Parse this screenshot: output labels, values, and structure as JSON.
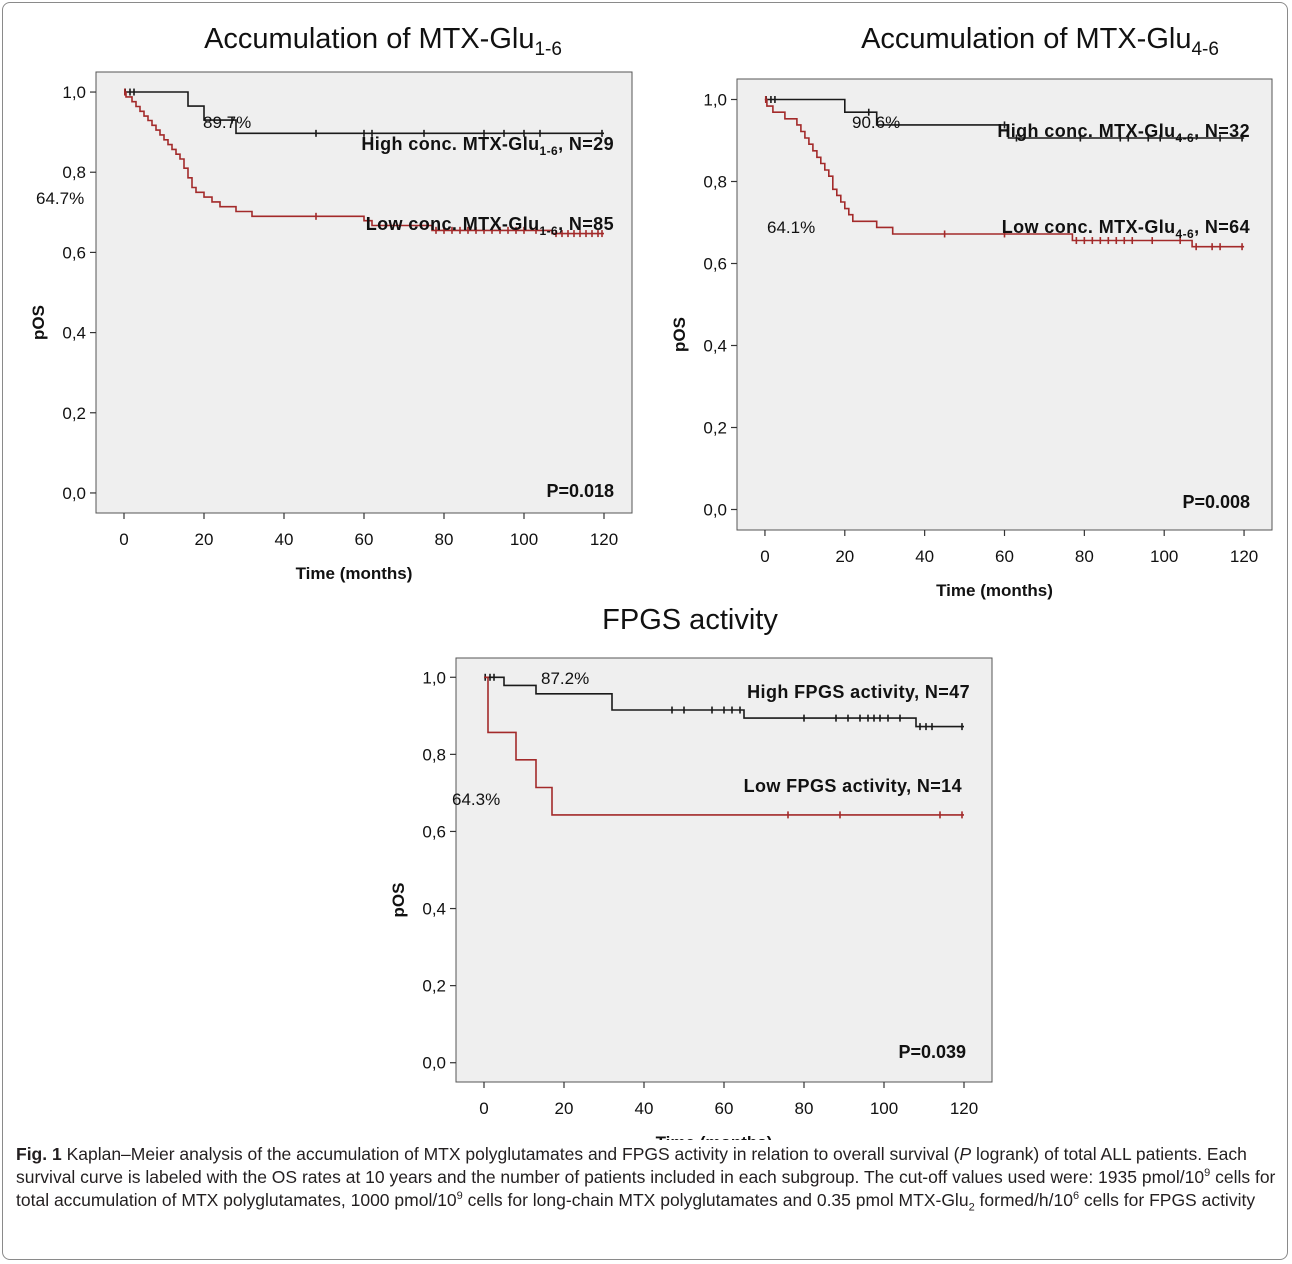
{
  "figure": {
    "caption_label": "Fig. 1",
    "caption_parts": [
      {
        "t": " Kaplan–Meier analysis of the accumulation of MTX polyglutamates and FPGS activity in relation to overall survival ("
      },
      {
        "t": "P",
        "i": true
      },
      {
        "t": " logrank) of total ALL patients. Each survival curve is labeled with the OS rates at 10 years and the number of patients included in each subgroup. The cut-off values used were: 1935 pmol/10"
      },
      {
        "t": "9",
        "sup": true
      },
      {
        "t": " cells for total accumulation of MTX polyglutamates, 1000 pmol/10"
      },
      {
        "t": "9",
        "sup": true
      },
      {
        "t": " cells for long-chain MTX polyglutamates and 0.35 pmol MTX-Glu"
      },
      {
        "t": "2",
        "sub": true
      },
      {
        "t": " formed/h/10"
      },
      {
        "t": "6",
        "sup": true
      },
      {
        "t": " cells for FPGS activity"
      }
    ]
  },
  "chart_data": [
    {
      "type": "line",
      "title": "Accumulation of MTX-Glu",
      "title_sub": "1-6",
      "xlabel": "Time (months)",
      "ylabel": "pOS",
      "xticks": [
        0,
        20,
        40,
        60,
        80,
        100,
        120
      ],
      "yticks": [
        "0,0",
        "0,2",
        "0,4",
        "0,6",
        "0,8",
        "1,0"
      ],
      "xlim": [
        -7,
        127
      ],
      "ylim": [
        -0.05,
        1.05
      ],
      "pvalue": "P=0.018",
      "series": [
        {
          "name": "High conc. MTX-Glu",
          "name_sub": "1-6",
          "name_suffix": ", N=29",
          "color": "#1a1a1a",
          "rate_label": "89.7%",
          "steps": [
            [
              0,
              1.0
            ],
            [
              16,
              0.965
            ],
            [
              20,
              0.93
            ],
            [
              28,
              0.897
            ],
            [
              120,
              0.897
            ]
          ],
          "censor": [
            0.3,
            1.5,
            2.5,
            27,
            48,
            60,
            62,
            75,
            90,
            95,
            100,
            104,
            119.5
          ]
        },
        {
          "name": "Low conc. MTX-Glu",
          "name_sub": "1-6",
          "name_suffix": ", N=85",
          "color": "#a32a2a",
          "rate_label": "64.7%",
          "steps": [
            [
              0,
              1.0
            ],
            [
              0.5,
              0.988
            ],
            [
              2,
              0.976
            ],
            [
              3,
              0.964
            ],
            [
              4,
              0.952
            ],
            [
              5,
              0.94
            ],
            [
              6,
              0.929
            ],
            [
              7,
              0.917
            ],
            [
              8,
              0.905
            ],
            [
              9,
              0.893
            ],
            [
              10,
              0.881
            ],
            [
              11,
              0.869
            ],
            [
              12,
              0.857
            ],
            [
              13,
              0.845
            ],
            [
              14,
              0.833
            ],
            [
              15,
              0.81
            ],
            [
              16,
              0.786
            ],
            [
              17,
              0.762
            ],
            [
              18,
              0.75
            ],
            [
              20,
              0.738
            ],
            [
              22,
              0.726
            ],
            [
              24,
              0.714
            ],
            [
              28,
              0.702
            ],
            [
              32,
              0.69
            ],
            [
              60,
              0.679
            ],
            [
              62,
              0.667
            ],
            [
              77,
              0.655
            ],
            [
              78,
              0.655
            ],
            [
              107,
              0.647
            ],
            [
              120,
              0.647
            ]
          ],
          "censor": [
            0.2,
            48,
            61,
            78,
            80,
            82,
            84,
            86,
            88,
            90,
            92,
            94,
            96,
            98,
            100,
            103,
            108,
            109.5,
            111,
            112.5,
            114,
            115.5,
            117,
            118.5,
            119.5
          ]
        }
      ]
    },
    {
      "type": "line",
      "title": "Accumulation of MTX-Glu",
      "title_sub": "4-6",
      "xlabel": "Time (months)",
      "ylabel": "pOS",
      "xticks": [
        0,
        20,
        40,
        60,
        80,
        100,
        120
      ],
      "yticks": [
        "0,0",
        "0,2",
        "0,4",
        "0,6",
        "0,8",
        "1,0"
      ],
      "xlim": [
        -7,
        127
      ],
      "ylim": [
        -0.05,
        1.05
      ],
      "pvalue": "P=0.008",
      "series": [
        {
          "name": "High conc. MTX-Glu",
          "name_sub": "4-6",
          "name_suffix": ", N=32",
          "color": "#1a1a1a",
          "rate_label": "90.6%",
          "steps": [
            [
              0,
              1.0
            ],
            [
              20,
              0.969
            ],
            [
              28,
              0.938
            ],
            [
              61,
              0.906
            ],
            [
              120,
              0.906
            ]
          ],
          "censor": [
            0.3,
            1.5,
            2.5,
            26,
            60,
            63,
            79,
            89,
            91,
            96,
            99,
            104,
            114,
            119.5
          ]
        },
        {
          "name": "Low conc. MTX-Glu",
          "name_sub": "4-6",
          "name_suffix": ", N=64",
          "color": "#a32a2a",
          "rate_label": "64.1%",
          "steps": [
            [
              0,
              1.0
            ],
            [
              0.5,
              0.984
            ],
            [
              2,
              0.969
            ],
            [
              5,
              0.953
            ],
            [
              8,
              0.938
            ],
            [
              9,
              0.922
            ],
            [
              10,
              0.906
            ],
            [
              11,
              0.891
            ],
            [
              12,
              0.875
            ],
            [
              13,
              0.859
            ],
            [
              14,
              0.844
            ],
            [
              15,
              0.828
            ],
            [
              16,
              0.813
            ],
            [
              17,
              0.781
            ],
            [
              18,
              0.766
            ],
            [
              19,
              0.75
            ],
            [
              20,
              0.734
            ],
            [
              21,
              0.719
            ],
            [
              22,
              0.703
            ],
            [
              28,
              0.688
            ],
            [
              32,
              0.672
            ],
            [
              77,
              0.656
            ],
            [
              79,
              0.656
            ],
            [
              107,
              0.641
            ],
            [
              120,
              0.641
            ]
          ],
          "censor": [
            0.2,
            45,
            60,
            78,
            80,
            82,
            84,
            86,
            88,
            90,
            92,
            97,
            104,
            108,
            112,
            114,
            119.5
          ]
        }
      ]
    },
    {
      "type": "line",
      "title": "FPGS activity",
      "title_sub": "",
      "xlabel": "Time (months)",
      "ylabel": "pOS",
      "xticks": [
        0,
        20,
        40,
        60,
        80,
        100,
        120
      ],
      "yticks": [
        "0,0",
        "0,2",
        "0,4",
        "0,6",
        "0,8",
        "1,0"
      ],
      "xlim": [
        -7,
        127
      ],
      "ylim": [
        -0.05,
        1.05
      ],
      "pvalue": "P=0.039",
      "series": [
        {
          "name": "High FPGS activity",
          "name_sub": "",
          "name_suffix": ", N=47",
          "color": "#1a1a1a",
          "rate_label": "87.2%",
          "steps": [
            [
              0,
              1.0
            ],
            [
              5,
              0.979
            ],
            [
              13,
              0.957
            ],
            [
              32,
              0.915
            ],
            [
              65,
              0.894
            ],
            [
              108,
              0.872
            ],
            [
              120,
              0.872
            ]
          ],
          "censor": [
            0.3,
            1.5,
            2.5,
            47,
            50,
            57,
            60,
            62,
            64,
            80,
            88,
            91,
            94,
            96,
            97.5,
            99,
            101,
            104,
            109,
            110.5,
            112,
            119.5
          ]
        },
        {
          "name": "Low FPGS activity",
          "name_sub": "",
          "name_suffix": ", N=14",
          "color": "#a32a2a",
          "rate_label": "64.3%",
          "steps": [
            [
              0,
              1.0
            ],
            [
              1,
              0.857
            ],
            [
              8,
              0.786
            ],
            [
              13,
              0.714
            ],
            [
              17,
              0.643
            ],
            [
              120,
              0.643
            ]
          ],
          "censor": [
            76,
            89,
            114,
            119.5
          ]
        }
      ]
    }
  ]
}
